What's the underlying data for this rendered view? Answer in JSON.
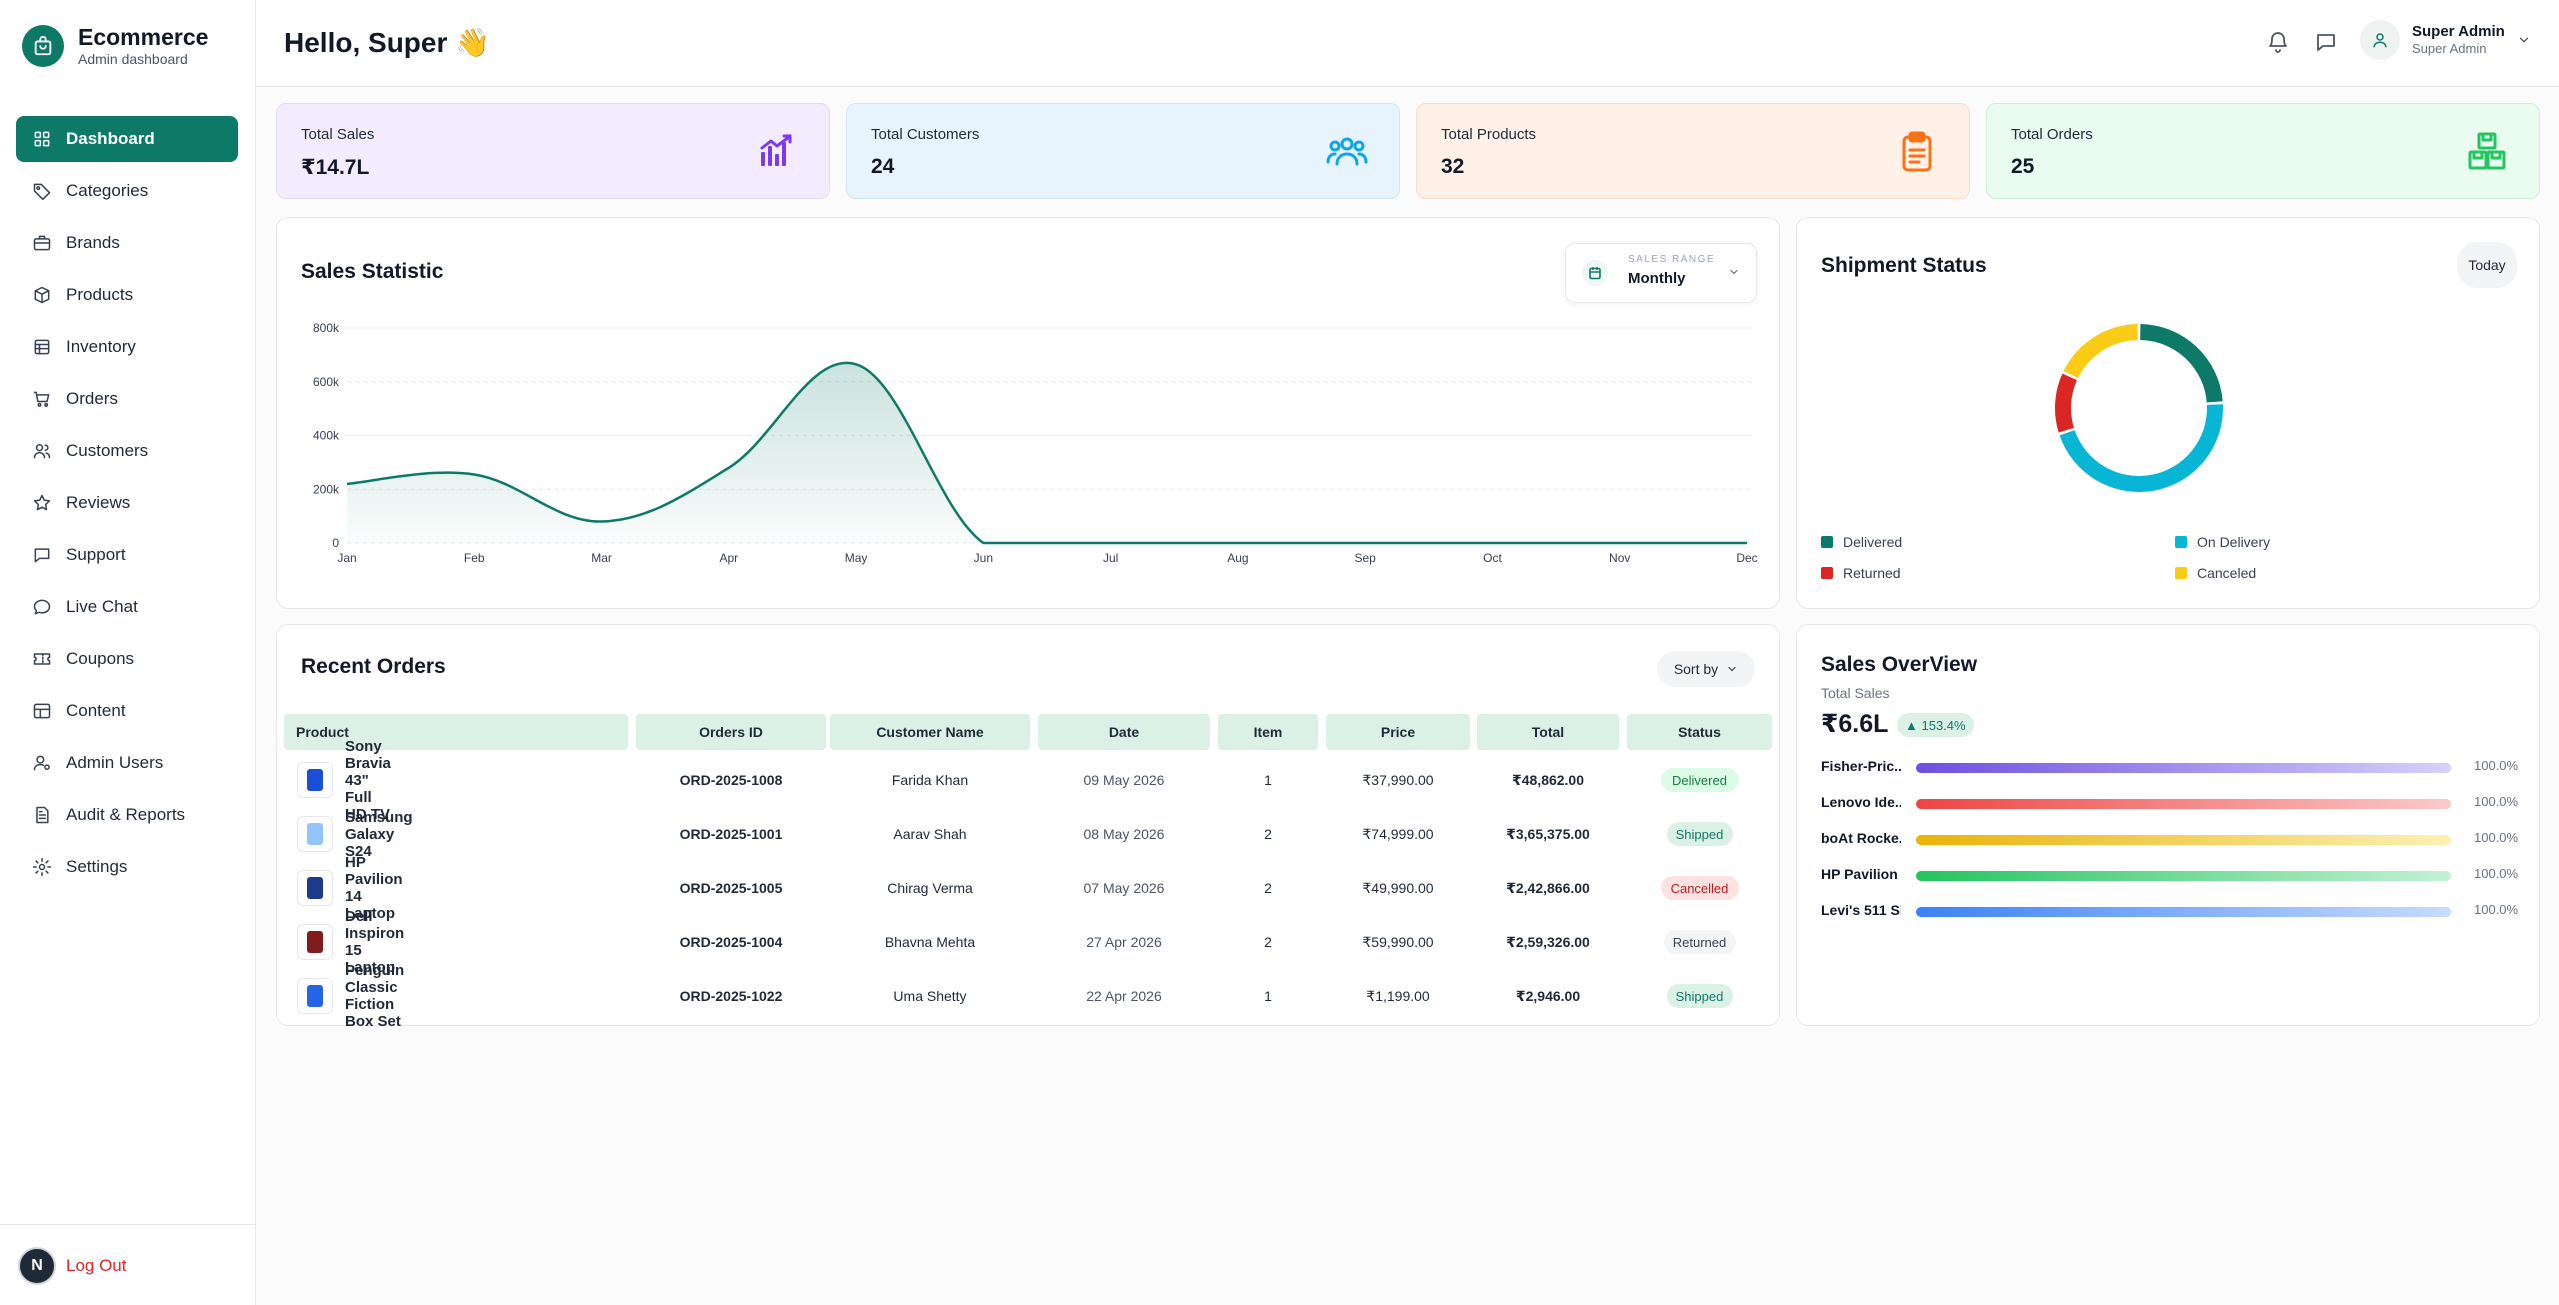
{
  "brand": {
    "title": "Ecommerce",
    "subtitle": "Admin dashboard"
  },
  "nav": [
    {
      "label": "Dashboard",
      "icon": "dashboard-icon",
      "active": true
    },
    {
      "label": "Categories",
      "icon": "tag-icon"
    },
    {
      "label": "Brands",
      "icon": "briefcase-icon"
    },
    {
      "label": "Products",
      "icon": "box-icon"
    },
    {
      "label": "Inventory",
      "icon": "inventory-icon"
    },
    {
      "label": "Orders",
      "icon": "cart-icon"
    },
    {
      "label": "Customers",
      "icon": "users-icon"
    },
    {
      "label": "Reviews",
      "icon": "star-icon"
    },
    {
      "label": "Support",
      "icon": "message-icon"
    },
    {
      "label": "Live Chat",
      "icon": "chat-icon"
    },
    {
      "label": "Coupons",
      "icon": "ticket-icon"
    },
    {
      "label": "Content",
      "icon": "layout-icon"
    },
    {
      "label": "Admin Users",
      "icon": "admin-user-icon"
    },
    {
      "label": "Audit & Reports",
      "icon": "report-icon"
    },
    {
      "label": "Settings",
      "icon": "gear-icon"
    }
  ],
  "logout": {
    "avatar": "N",
    "label": "Log Out"
  },
  "header": {
    "greeting": "Hello, Super 👋",
    "user_name": "Super Admin",
    "user_role": "Super Admin"
  },
  "stats": [
    {
      "label": "Total Sales",
      "value": "₹14.7L",
      "bg": "#f3ecfe",
      "border": "#e4d8fb",
      "icon": "chart-icon",
      "color": "#7c3aed"
    },
    {
      "label": "Total Customers",
      "value": "24",
      "bg": "#e8f4fd",
      "border": "#cfe6f8",
      "icon": "users-group-icon",
      "color": "#0ea5e9"
    },
    {
      "label": "Total Products",
      "value": "32",
      "bg": "#fff0e8",
      "border": "#fbdcc9",
      "icon": "clipboard-icon",
      "color": "#f97316"
    },
    {
      "label": "Total Orders",
      "value": "25",
      "bg": "#eafbf0",
      "border": "#cdefd9",
      "icon": "boxes-icon",
      "color": "#22c55e"
    }
  ],
  "sales_statistic": {
    "title": "Sales Statistic",
    "range_label": "SALES RANGE",
    "range_value": "Monthly"
  },
  "chart_data": {
    "type": "area",
    "title": "Sales Statistic",
    "categories": [
      "Jan",
      "Feb",
      "Mar",
      "Apr",
      "May",
      "Jun",
      "Jul",
      "Aug",
      "Sep",
      "Oct",
      "Nov",
      "Dec"
    ],
    "series": [
      {
        "values": [
          220000,
          255000,
          80000,
          280000,
          665000,
          0,
          0,
          0,
          0,
          0,
          0,
          0
        ]
      }
    ],
    "ylim": [
      0,
      800000
    ],
    "yticks": [
      "0",
      "200k",
      "400k",
      "600k",
      "800k"
    ],
    "grid": true,
    "color": "#0d7a68"
  },
  "shipment": {
    "title": "Shipment Status",
    "filter": "Today",
    "segments": [
      {
        "name": "Delivered",
        "value": 24,
        "color": "#0d7a68"
      },
      {
        "name": "On Delivery",
        "value": 46,
        "color": "#06b6d4"
      },
      {
        "name": "Returned",
        "value": 12,
        "color": "#dc2626"
      },
      {
        "name": "Canceled",
        "value": 18,
        "color": "#facc15"
      }
    ]
  },
  "recent_orders": {
    "title": "Recent Orders",
    "sort_label": "Sort by",
    "columns": [
      "Product",
      "Orders ID",
      "Customer Name",
      "Date",
      "Item",
      "Price",
      "Total",
      "Status"
    ],
    "rows": [
      {
        "product": "Sony Bravia 43\" Full HD TV",
        "id": "ORD-2025-1008",
        "customer": "Farida Khan",
        "date": "09 May 2026",
        "item": "1",
        "price": "₹37,990.00",
        "total": "₹48,862.00",
        "status": "Delivered"
      },
      {
        "product": "Samsung Galaxy S24",
        "id": "ORD-2025-1001",
        "customer": "Aarav Shah",
        "date": "08 May 2026",
        "item": "2",
        "price": "₹74,999.00",
        "total": "₹3,65,375.00",
        "status": "Shipped"
      },
      {
        "product": "HP Pavilion 14 Laptop",
        "id": "ORD-2025-1005",
        "customer": "Chirag Verma",
        "date": "07 May 2026",
        "item": "2",
        "price": "₹49,990.00",
        "total": "₹2,42,866.00",
        "status": "Cancelled"
      },
      {
        "product": "Dell Inspiron 15 Laptop",
        "id": "ORD-2025-1004",
        "customer": "Bhavna Mehta",
        "date": "27 Apr 2026",
        "item": "2",
        "price": "₹59,990.00",
        "total": "₹2,59,326.00",
        "status": "Returned"
      },
      {
        "product": "Penguin Classic Fiction Box Set",
        "id": "ORD-2025-1022",
        "customer": "Uma Shetty",
        "date": "22 Apr 2026",
        "item": "1",
        "price": "₹1,199.00",
        "total": "₹2,946.00",
        "status": "Shipped"
      }
    ],
    "status_colors": {
      "Delivered": {
        "bg": "#dcfce7",
        "fg": "#15803d"
      },
      "Shipped": {
        "bg": "#dcf1e5",
        "fg": "#0d7a68"
      },
      "Cancelled": {
        "bg": "#fee2e2",
        "fg": "#b91c1c"
      },
      "Returned": {
        "bg": "#f3f4f6",
        "fg": "#374151"
      }
    }
  },
  "sales_overview": {
    "title": "Sales OverView",
    "subtitle": "Total Sales",
    "total": "₹6.6L",
    "growth": "▲ 153.4%",
    "items": [
      {
        "label": "Fisher-Pric...",
        "percent": "100.0%",
        "fill": 1.0,
        "from": "#6d4fe0",
        "to": "#d8d0fa"
      },
      {
        "label": "Lenovo Ide...",
        "percent": "100.0%",
        "fill": 1.0,
        "from": "#ef4444",
        "to": "#fdc9c9"
      },
      {
        "label": "boAt Rocke...",
        "percent": "100.0%",
        "fill": 1.0,
        "from": "#eab308",
        "to": "#fdf0b4"
      },
      {
        "label": "HP Pavilion ...",
        "percent": "100.0%",
        "fill": 1.0,
        "from": "#22c55e",
        "to": "#c4f1d5"
      },
      {
        "label": "Levi's 511 Sl...",
        "percent": "100.0%",
        "fill": 1.0,
        "from": "#3b82f6",
        "to": "#c8dcfc"
      }
    ]
  }
}
